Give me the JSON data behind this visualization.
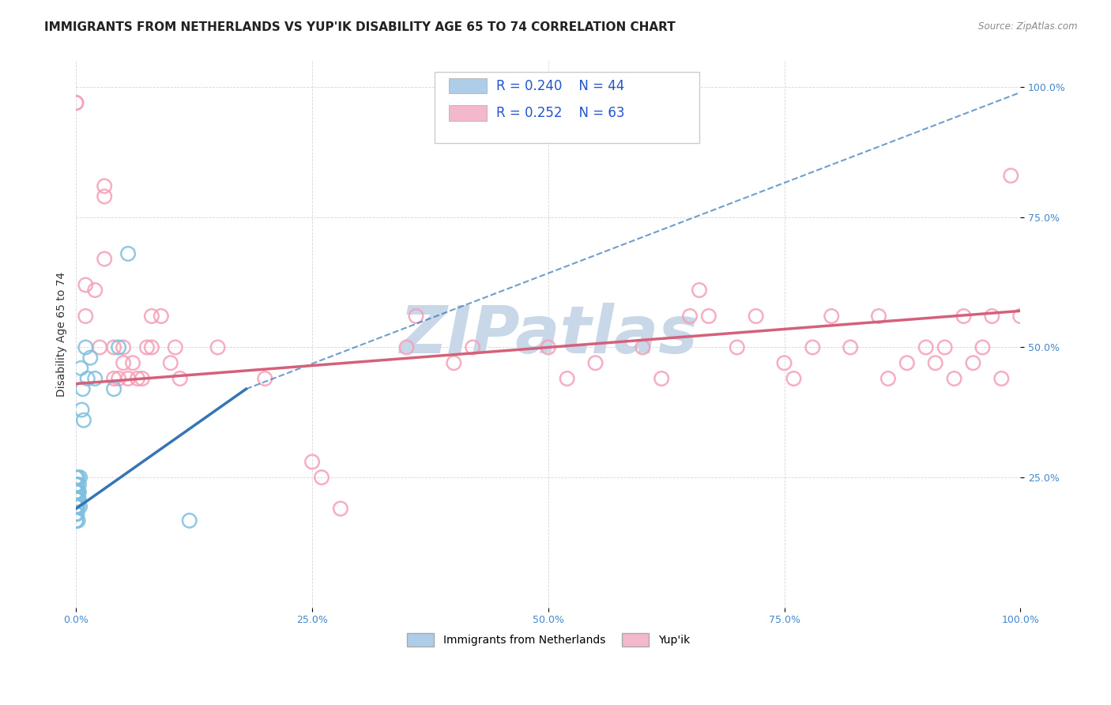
{
  "title": "IMMIGRANTS FROM NETHERLANDS VS YUP'IK DISABILITY AGE 65 TO 74 CORRELATION CHART",
  "source_text": "Source: ZipAtlas.com",
  "ylabel": "Disability Age 65 to 74",
  "xlim": [
    0.0,
    1.0
  ],
  "ylim": [
    0.0,
    1.05
  ],
  "xtick_labels": [
    "0.0%",
    "25.0%",
    "50.0%",
    "75.0%",
    "100.0%"
  ],
  "xtick_positions": [
    0.0,
    0.25,
    0.5,
    0.75,
    1.0
  ],
  "ytick_labels": [
    "25.0%",
    "50.0%",
    "75.0%",
    "100.0%"
  ],
  "ytick_positions": [
    0.25,
    0.5,
    0.75,
    1.0
  ],
  "legend_labels": [
    "Immigrants from Netherlands",
    "Yup'ik"
  ],
  "legend_r": [
    "R = 0.240",
    "R = 0.252"
  ],
  "legend_n": [
    "N = 44",
    "N = 63"
  ],
  "watermark": "ZIPatlas",
  "blue_color": "#7fbfdf",
  "pink_color": "#f4a0b8",
  "blue_line_color": "#3575b5",
  "pink_line_color": "#d4607a",
  "blue_scatter": [
    [
      0.0,
      0.222
    ],
    [
      0.0,
      0.194
    ],
    [
      0.0,
      0.208
    ],
    [
      0.0,
      0.167
    ],
    [
      0.0,
      0.25
    ],
    [
      0.0,
      0.236
    ],
    [
      0.0,
      0.18
    ],
    [
      0.0,
      0.222
    ],
    [
      0.0,
      0.208
    ],
    [
      0.0,
      0.25
    ],
    [
      0.0,
      0.194
    ],
    [
      0.0,
      0.222
    ],
    [
      0.0,
      0.236
    ],
    [
      0.0,
      0.167
    ],
    [
      0.0,
      0.208
    ],
    [
      0.0,
      0.18
    ],
    [
      0.001,
      0.222
    ],
    [
      0.001,
      0.194
    ],
    [
      0.001,
      0.236
    ],
    [
      0.001,
      0.208
    ],
    [
      0.001,
      0.18
    ],
    [
      0.001,
      0.222
    ],
    [
      0.002,
      0.25
    ],
    [
      0.002,
      0.194
    ],
    [
      0.002,
      0.208
    ],
    [
      0.002,
      0.222
    ],
    [
      0.002,
      0.167
    ],
    [
      0.003,
      0.236
    ],
    [
      0.003,
      0.222
    ],
    [
      0.003,
      0.208
    ],
    [
      0.004,
      0.194
    ],
    [
      0.004,
      0.25
    ],
    [
      0.005,
      0.46
    ],
    [
      0.006,
      0.38
    ],
    [
      0.007,
      0.42
    ],
    [
      0.008,
      0.36
    ],
    [
      0.01,
      0.5
    ],
    [
      0.012,
      0.44
    ],
    [
      0.015,
      0.48
    ],
    [
      0.02,
      0.44
    ],
    [
      0.04,
      0.42
    ],
    [
      0.045,
      0.5
    ],
    [
      0.055,
      0.68
    ],
    [
      0.12,
      0.167
    ]
  ],
  "pink_scatter": [
    [
      0.0,
      0.97
    ],
    [
      0.0,
      0.97
    ],
    [
      0.01,
      0.62
    ],
    [
      0.01,
      0.56
    ],
    [
      0.02,
      0.61
    ],
    [
      0.025,
      0.5
    ],
    [
      0.03,
      0.67
    ],
    [
      0.03,
      0.79
    ],
    [
      0.03,
      0.81
    ],
    [
      0.04,
      0.44
    ],
    [
      0.04,
      0.5
    ],
    [
      0.045,
      0.44
    ],
    [
      0.05,
      0.47
    ],
    [
      0.05,
      0.5
    ],
    [
      0.055,
      0.44
    ],
    [
      0.06,
      0.47
    ],
    [
      0.065,
      0.44
    ],
    [
      0.07,
      0.44
    ],
    [
      0.075,
      0.5
    ],
    [
      0.08,
      0.56
    ],
    [
      0.08,
      0.5
    ],
    [
      0.09,
      0.56
    ],
    [
      0.1,
      0.47
    ],
    [
      0.105,
      0.5
    ],
    [
      0.11,
      0.44
    ],
    [
      0.15,
      0.5
    ],
    [
      0.2,
      0.44
    ],
    [
      0.25,
      0.28
    ],
    [
      0.26,
      0.25
    ],
    [
      0.28,
      0.19
    ],
    [
      0.35,
      0.5
    ],
    [
      0.36,
      0.56
    ],
    [
      0.4,
      0.47
    ],
    [
      0.42,
      0.5
    ],
    [
      0.5,
      0.5
    ],
    [
      0.52,
      0.44
    ],
    [
      0.55,
      0.47
    ],
    [
      0.6,
      0.5
    ],
    [
      0.62,
      0.44
    ],
    [
      0.65,
      0.56
    ],
    [
      0.66,
      0.61
    ],
    [
      0.67,
      0.56
    ],
    [
      0.7,
      0.5
    ],
    [
      0.72,
      0.56
    ],
    [
      0.75,
      0.47
    ],
    [
      0.76,
      0.44
    ],
    [
      0.78,
      0.5
    ],
    [
      0.8,
      0.56
    ],
    [
      0.82,
      0.5
    ],
    [
      0.85,
      0.56
    ],
    [
      0.86,
      0.44
    ],
    [
      0.88,
      0.47
    ],
    [
      0.9,
      0.5
    ],
    [
      0.91,
      0.47
    ],
    [
      0.92,
      0.5
    ],
    [
      0.93,
      0.44
    ],
    [
      0.94,
      0.56
    ],
    [
      0.95,
      0.47
    ],
    [
      0.96,
      0.5
    ],
    [
      0.97,
      0.56
    ],
    [
      0.98,
      0.44
    ],
    [
      0.99,
      0.83
    ],
    [
      1.0,
      0.56
    ]
  ],
  "blue_trendline_solid": [
    [
      0.0,
      0.19
    ],
    [
      0.18,
      0.42
    ]
  ],
  "blue_trendline_dashed": [
    [
      0.18,
      0.42
    ],
    [
      1.0,
      0.99
    ]
  ],
  "pink_trendline": [
    [
      0.0,
      0.43
    ],
    [
      1.0,
      0.57
    ]
  ],
  "title_fontsize": 11,
  "axis_label_fontsize": 10,
  "tick_fontsize": 9,
  "legend_fontsize": 12,
  "background_color": "#ffffff",
  "grid_color": "#cccccc",
  "watermark_color": "#c8d8e8",
  "title_color": "#222222",
  "source_color": "#888888",
  "tick_color": "#4488cc"
}
